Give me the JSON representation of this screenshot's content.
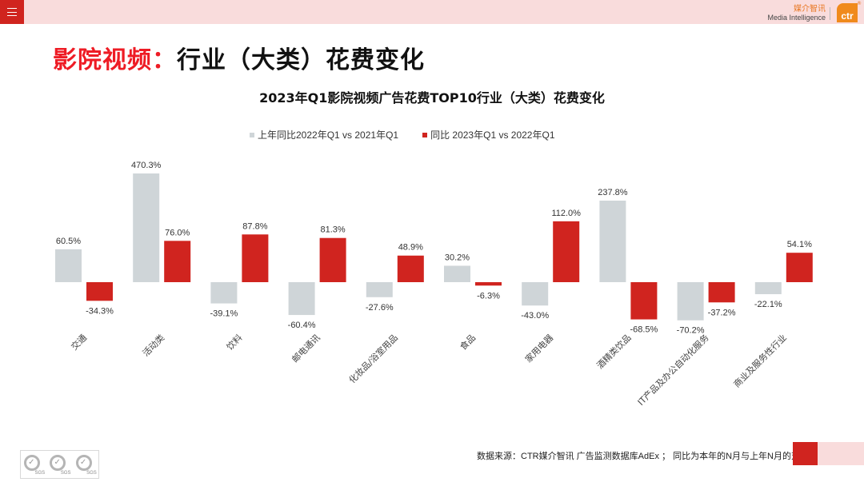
{
  "header": {
    "menu_icon": "hamburger-menu-icon",
    "brand_cn": "媒介智讯",
    "brand_en": "Media Intelligence",
    "logo_text": "ctr",
    "logo_reg": "®"
  },
  "page_title": {
    "prefix": "影院视频：",
    "main": "行业（大类）花费变化"
  },
  "colors": {
    "accent_red": "#d0241f",
    "title_red": "#ee1c25",
    "gray_bar": "#cfd5d8",
    "pink_bar": "#f9dcdc"
  },
  "chart_data": {
    "type": "bar",
    "title": "2023年Q1影院视频广告花费TOP10行业（大类）花费变化",
    "xlabel": "",
    "ylabel": "",
    "grid": false,
    "legend_position": "top-left",
    "categories": [
      "交通",
      "活动类",
      "饮料",
      "邮电通讯",
      "化妆品/浴室用品",
      "食品",
      "家用电器",
      "酒精类饮品",
      "IT产品及办公自动化服务",
      "商业及服务性行业"
    ],
    "series": [
      {
        "name": "上年同比2022年Q1 vs 2021年Q1",
        "color": "#cfd5d8",
        "values": [
          60.5,
          470.3,
          -39.1,
          -60.4,
          -27.6,
          30.2,
          -43.0,
          237.8,
          -70.2,
          -22.1
        ],
        "labels": [
          "60.5%",
          "470.3%",
          "-39.1%",
          "-60.4%",
          "-27.6%",
          "30.2%",
          "-43.0%",
          "237.8%",
          "-70.2%",
          "-22.1%"
        ]
      },
      {
        "name": "同比 2023年Q1 vs 2022年Q1",
        "color": "#d0241f",
        "values": [
          -34.3,
          76.0,
          87.8,
          81.3,
          48.9,
          -6.3,
          112.0,
          -68.5,
          -37.2,
          54.1
        ],
        "labels": [
          "-34.3%",
          "76.0%",
          "87.8%",
          "81.3%",
          "48.9%",
          "-6.3%",
          "112.0%",
          "-68.5%",
          "-37.2%",
          "54.1%"
        ]
      }
    ]
  },
  "footer": {
    "source": "数据来源：CTR媒介智讯 广告监测数据库AdEx ；  同比为本年的N月与上年N月的对比",
    "certs": [
      "SGS",
      "SGS",
      "SGS"
    ]
  }
}
